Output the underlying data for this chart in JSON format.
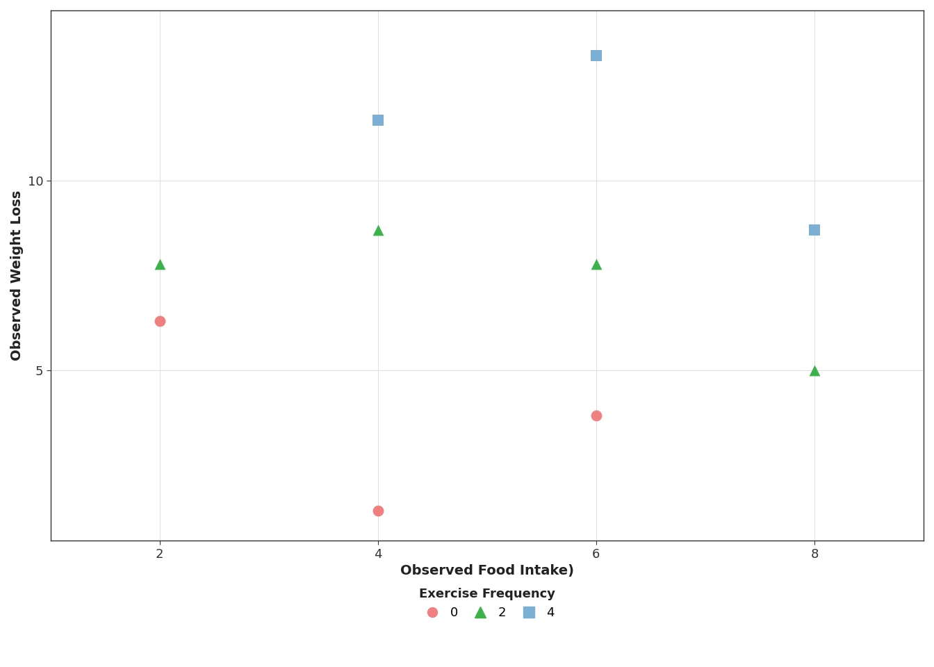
{
  "title": "",
  "xlabel": "Observed Food Intake)",
  "ylabel": "Observed Weight Loss",
  "background_color": "#ffffff",
  "plot_background_color": "#ffffff",
  "grid_color": "#e0e0e0",
  "series": [
    {
      "label": "0",
      "color": "#F08080",
      "marker": "o",
      "points": [
        [
          2,
          6.3
        ],
        [
          4,
          1.3
        ],
        [
          6,
          3.8
        ]
      ]
    },
    {
      "label": "2",
      "color": "#3cb34a",
      "marker": "^",
      "points": [
        [
          2,
          7.8
        ],
        [
          4,
          8.7
        ],
        [
          6,
          7.8
        ],
        [
          8,
          5.0
        ]
      ]
    },
    {
      "label": "4",
      "color": "#7bafd4",
      "marker": "s",
      "points": [
        [
          4,
          11.6
        ],
        [
          6,
          13.3
        ],
        [
          8,
          8.7
        ]
      ]
    }
  ],
  "xlim": [
    1.0,
    9.0
  ],
  "ylim": [
    0.5,
    14.5
  ],
  "xticks": [
    2,
    4,
    6,
    8
  ],
  "yticks": [
    5,
    10
  ],
  "legend_title": "Exercise Frequency",
  "legend_title_fontsize": 13,
  "legend_fontsize": 13,
  "axis_label_fontsize": 14,
  "tick_fontsize": 13,
  "marker_size": 130,
  "figsize": [
    13.44,
    9.6
  ],
  "dpi": 100
}
